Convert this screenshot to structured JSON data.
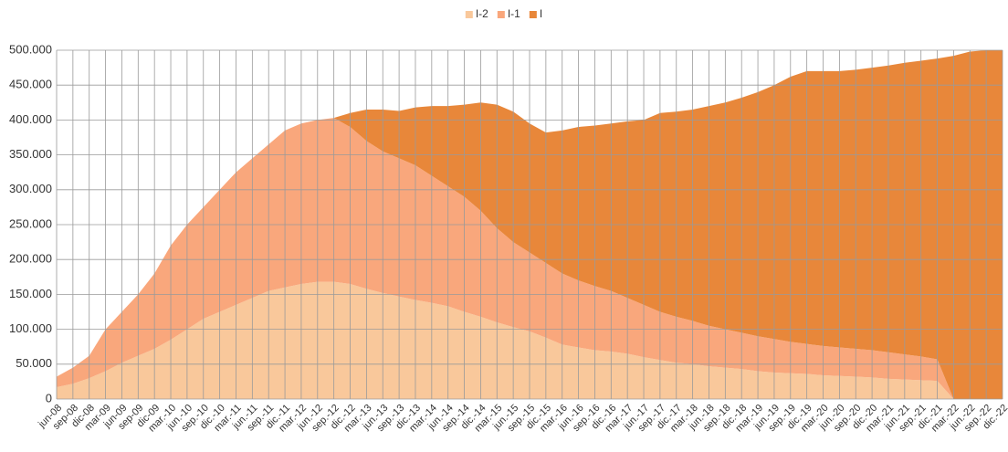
{
  "chart_data": {
    "type": "stacked_area",
    "categories": [
      "jun-08",
      "sep-08",
      "dic-08",
      "mar-09",
      "jun-09",
      "sep-09",
      "dic-09",
      "mar.-10",
      "jun.-10",
      "sep.-10",
      "dic.-10",
      "mar.-11",
      "jun.-11",
      "sep.-11",
      "dic.-11",
      "mar.-12",
      "jun.-12",
      "sep.-12",
      "dic.-12",
      "mar.-13",
      "jun.-13",
      "sep.-13",
      "dic.-13",
      "mar.-14",
      "jun.-14",
      "sep.-14",
      "dic.-14",
      "mar.-15",
      "jun.-15",
      "sep.-15",
      "dic.-15",
      "mar.-16",
      "jun.-16",
      "sep.-16",
      "dic.-16",
      "mar.-17",
      "jun.-17",
      "sep.-17",
      "dic.-17",
      "mar.-18",
      "jun.-18",
      "sep.-18",
      "dic.-18",
      "mar.-19",
      "jun.-19",
      "sep.-19",
      "dic.-19",
      "mar.-20",
      "jun.-20",
      "sep.-20",
      "dic.-20",
      "mar.-21",
      "jun.-21",
      "sep.-21",
      "dic.-21",
      "mar.-22",
      "jun.-22",
      "sep.-22",
      "dic.-22"
    ],
    "series": [
      {
        "name": "I-2",
        "color": "#f9c89b",
        "values": [
          17000,
          22000,
          30000,
          40000,
          52000,
          62000,
          72000,
          85000,
          100000,
          115000,
          125000,
          135000,
          145000,
          155000,
          160000,
          165000,
          168000,
          168000,
          165000,
          158000,
          152000,
          147000,
          142000,
          138000,
          133000,
          125000,
          118000,
          110000,
          103000,
          97000,
          88000,
          78000,
          74000,
          70000,
          68000,
          65000,
          60000,
          56000,
          52000,
          50000,
          47000,
          45000,
          43000,
          40000,
          38000,
          37000,
          36000,
          34000,
          33000,
          32000,
          31000,
          29000,
          28000,
          27000,
          26000,
          0,
          0,
          0,
          0
        ]
      },
      {
        "name": "I-1",
        "color": "#f9a77c",
        "values": [
          15000,
          23000,
          32000,
          60000,
          73000,
          88000,
          108000,
          135000,
          150000,
          160000,
          175000,
          190000,
          200000,
          210000,
          225000,
          230000,
          232000,
          235000,
          225000,
          212000,
          203000,
          198000,
          193000,
          182000,
          172000,
          165000,
          152000,
          135000,
          122000,
          113000,
          107000,
          102000,
          96000,
          92000,
          87000,
          80000,
          75000,
          69000,
          66000,
          62000,
          58000,
          55000,
          52000,
          50000,
          48000,
          45000,
          43000,
          42000,
          41000,
          40000,
          39000,
          38000,
          36000,
          34000,
          31000,
          0,
          0,
          0,
          0
        ]
      },
      {
        "name": "I",
        "color": "#e8873a",
        "values": [
          0,
          0,
          0,
          0,
          0,
          0,
          0,
          0,
          0,
          0,
          0,
          0,
          0,
          0,
          0,
          0,
          0,
          0,
          20000,
          45000,
          60000,
          68000,
          83000,
          100000,
          115000,
          132000,
          155000,
          177000,
          187000,
          185000,
          187000,
          205000,
          220000,
          230000,
          240000,
          253000,
          265000,
          285000,
          294000,
          303000,
          315000,
          325000,
          337000,
          350000,
          364000,
          380000,
          391000,
          394000,
          396000,
          400000,
          405000,
          411000,
          418000,
          424000,
          431000,
          492000,
          498000,
          500000,
          500000
        ]
      }
    ],
    "ylim": [
      0,
      500000
    ],
    "yticks": [
      0,
      {
        "value": 50000,
        "label": "50.000"
      },
      {
        "value": 100000,
        "label": "100.000"
      },
      {
        "value": 150000,
        "label": "150.000"
      },
      {
        "value": 200000,
        "label": "200.000"
      },
      {
        "value": 250000,
        "label": "250.000"
      },
      {
        "value": 300000,
        "label": "300.000"
      },
      {
        "value": 350000,
        "label": "350.000"
      },
      {
        "value": 400000,
        "label": "400.000"
      },
      {
        "value": 450000,
        "label": "450.000"
      },
      {
        "value": 500000,
        "label": "500.000"
      }
    ],
    "grid": true,
    "legend": "top"
  }
}
